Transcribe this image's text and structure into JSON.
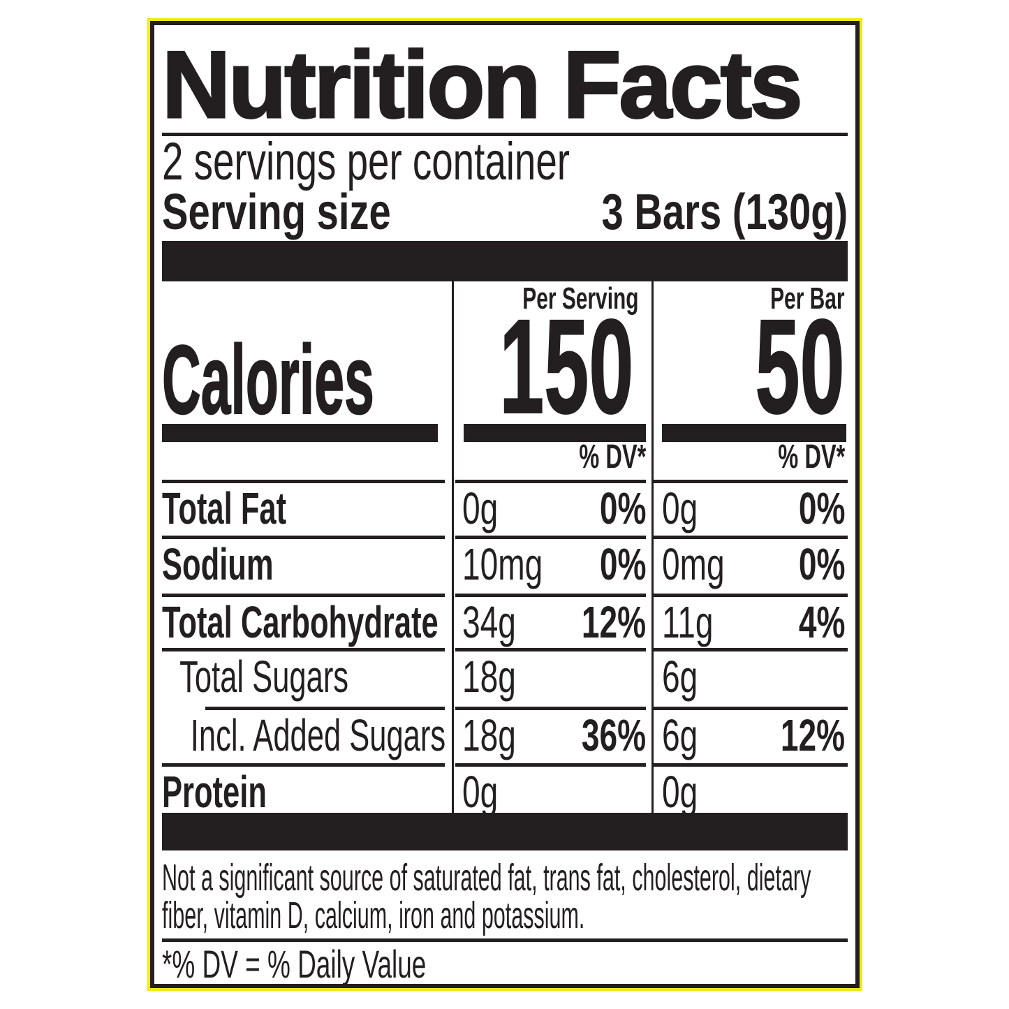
{
  "colors": {
    "ink": "#231f20",
    "label_background": "#ffffff",
    "accent_border_yellow": "#f3e71a"
  },
  "label": {
    "title": "Nutrition Facts",
    "servings_per_container": "2 servings per container",
    "serving_size": {
      "label": "Serving size",
      "value": "3 Bars (130g)"
    },
    "columns": {
      "per_serving": "Per Serving",
      "per_bar": "Per Bar"
    },
    "calories": {
      "label": "Calories",
      "per_serving": "150",
      "per_bar": "50"
    },
    "dv_header": "% DV*",
    "rows": [
      {
        "label": "Total Fat",
        "per_serving": {
          "amount": "0g",
          "dv": "0%"
        },
        "per_bar": {
          "amount": "0g",
          "dv": "0%"
        }
      },
      {
        "label": "Sodium",
        "per_serving": {
          "amount": "10mg",
          "dv": "0%"
        },
        "per_bar": {
          "amount": "0mg",
          "dv": "0%"
        }
      },
      {
        "label": "Total Carbohydrate",
        "per_serving": {
          "amount": "34g",
          "dv": "12%"
        },
        "per_bar": {
          "amount": "11g",
          "dv": "4%"
        }
      },
      {
        "label": "Total Sugars",
        "per_serving": {
          "amount": "18g",
          "dv": ""
        },
        "per_bar": {
          "amount": "6g",
          "dv": ""
        }
      },
      {
        "label": "Incl. Added Sugars",
        "per_serving": {
          "amount": "18g",
          "dv": "36%"
        },
        "per_bar": {
          "amount": "6g",
          "dv": "12%"
        }
      },
      {
        "label": "Protein",
        "per_serving": {
          "amount": "0g",
          "dv": ""
        },
        "per_bar": {
          "amount": "0g",
          "dv": ""
        }
      }
    ],
    "footnote": "Not a significant source of saturated fat, trans fat, cholesterol, dietary fiber, vitamin D, calcium, iron and potassium.",
    "dv_definition": "*% DV = % Daily Value"
  }
}
